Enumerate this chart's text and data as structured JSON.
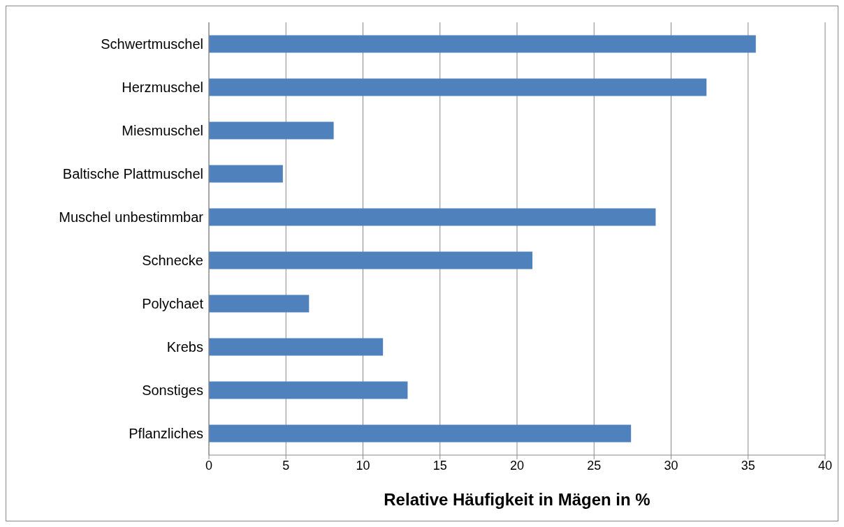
{
  "chart_data": {
    "type": "bar",
    "orientation": "horizontal",
    "xlabel": "Relative Häufigkeit in Mägen in %",
    "categories": [
      "Schwertmuschel",
      "Herzmuschel",
      "Miesmuschel",
      "Baltische Plattmuschel",
      "Muschel unbestimmbar",
      "Schnecke",
      "Polychaet",
      "Krebs",
      "Sonstiges",
      "Pflanzliches"
    ],
    "values": [
      35.5,
      32.3,
      8.1,
      4.8,
      29.0,
      21.0,
      6.5,
      11.3,
      12.9,
      27.4
    ],
    "color": "#4f81bd",
    "xlim": [
      0,
      40
    ],
    "xticks": [
      0,
      5,
      10,
      15,
      20,
      25,
      30,
      35,
      40
    ],
    "grid": "x"
  }
}
